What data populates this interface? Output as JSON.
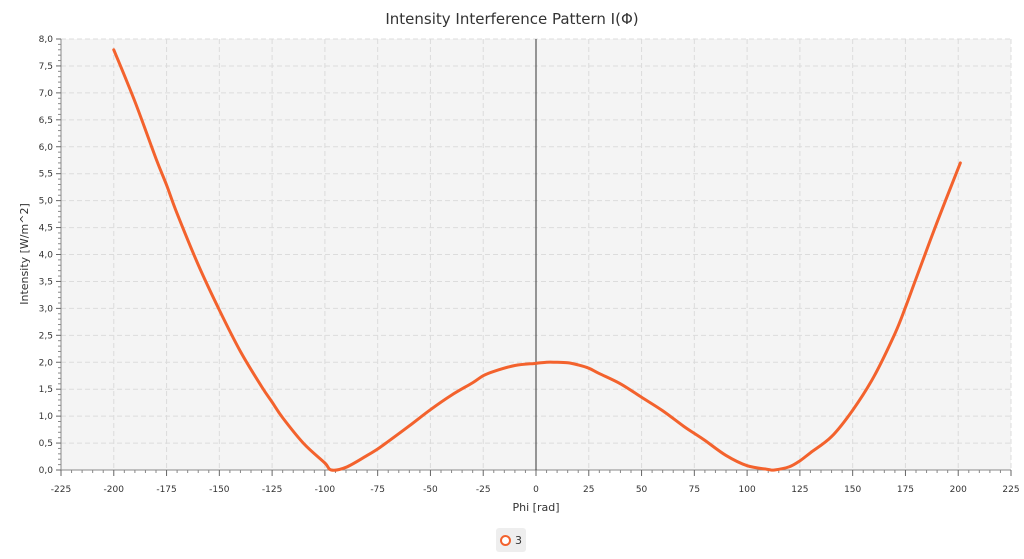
{
  "chart_data": {
    "type": "line",
    "title": "Intensity Interference Pattern I(Φ)",
    "xlabel": "Phi [rad]",
    "ylabel": "Intensity [W/m^2]",
    "xlim": [
      -225,
      225
    ],
    "ylim": [
      0,
      8
    ],
    "x_ticks": [
      -225,
      -200,
      -175,
      -150,
      -125,
      -100,
      -75,
      -50,
      -25,
      0,
      25,
      50,
      75,
      100,
      125,
      150,
      175,
      200,
      225
    ],
    "y_ticks": [
      "0,0",
      "0,5",
      "1,0",
      "1,5",
      "2,0",
      "2,5",
      "3,0",
      "3,5",
      "4,0",
      "4,5",
      "5,0",
      "5,5",
      "6,0",
      "6,5",
      "7,0",
      "7,5",
      "8,0"
    ],
    "grid": true,
    "legend_position": "bottom",
    "series": [
      {
        "name": "3",
        "color": "#f3622d",
        "x": [
          -200,
          -190,
          -180,
          -175,
          -170,
          -160,
          -150,
          -140,
          -130,
          -125,
          -120,
          -110,
          -100,
          -97,
          -90,
          -80,
          -75,
          -70,
          -60,
          -50,
          -40,
          -30,
          -25,
          -20,
          -10,
          0,
          5,
          9,
          15,
          20,
          25,
          30,
          40,
          50,
          60,
          70,
          75,
          80,
          90,
          100,
          110,
          113,
          120,
          125,
          130,
          140,
          150,
          160,
          170,
          175,
          180,
          190,
          201
        ],
        "y": [
          7.8,
          6.84,
          5.78,
          5.29,
          4.76,
          3.81,
          2.97,
          2.2,
          1.55,
          1.26,
          0.97,
          0.49,
          0.13,
          0.0,
          0.05,
          0.27,
          0.39,
          0.53,
          0.82,
          1.12,
          1.39,
          1.62,
          1.75,
          1.83,
          1.94,
          1.98,
          2.0,
          2.0,
          1.99,
          1.95,
          1.89,
          1.79,
          1.6,
          1.35,
          1.1,
          0.81,
          0.68,
          0.55,
          0.27,
          0.08,
          0.01,
          0.0,
          0.06,
          0.17,
          0.32,
          0.62,
          1.11,
          1.73,
          2.53,
          3.02,
          3.55,
          4.6,
          5.7
        ]
      }
    ]
  }
}
